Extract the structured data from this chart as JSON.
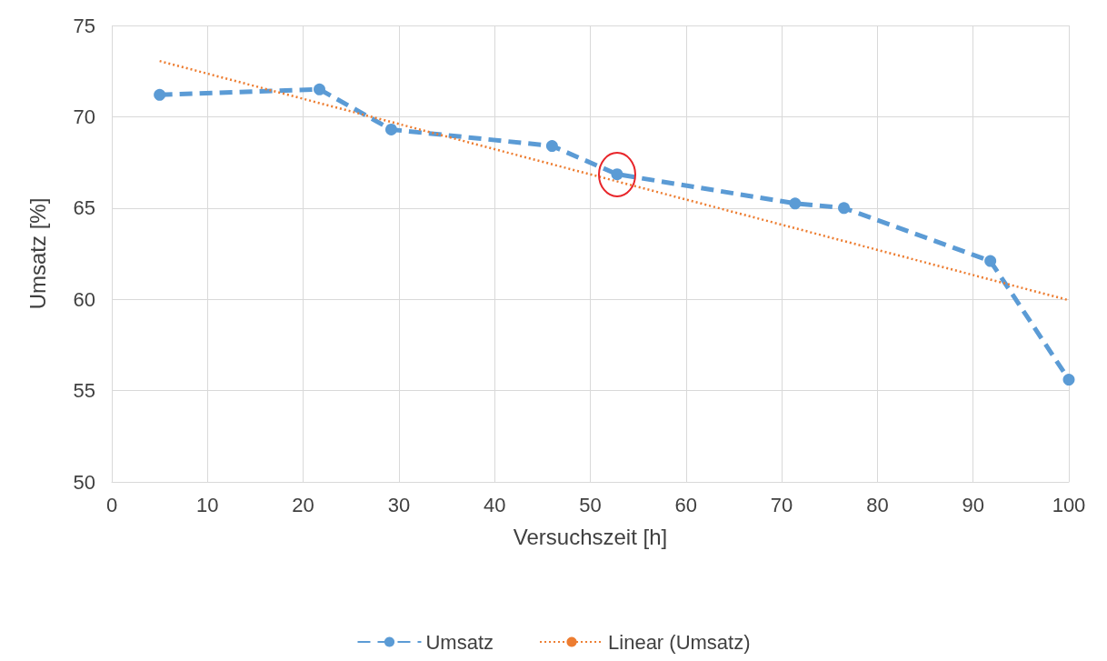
{
  "chart_data": {
    "type": "line",
    "xlabel": "Versuchszeit [h]",
    "ylabel": "Umsatz [%]",
    "xlim": [
      0,
      100
    ],
    "xticks": [
      0,
      10,
      20,
      30,
      40,
      50,
      60,
      70,
      80,
      90,
      100
    ],
    "ylim": [
      50,
      75
    ],
    "yticks": [
      50,
      55,
      60,
      65,
      70,
      75
    ],
    "grid": true,
    "legend": "bottom",
    "series": [
      {
        "name": "Umsatz",
        "color": "#5b9bd5",
        "marker": "circle",
        "line_style": "dashed",
        "x": [
          5,
          21.7,
          29.2,
          46,
          52.8,
          71.4,
          76.5,
          91.8,
          100
        ],
        "values": [
          71.2,
          71.5,
          69.3,
          68.4,
          66.85,
          65.25,
          65,
          62.1,
          55.6
        ]
      },
      {
        "name": "Linear (Umsatz)",
        "color": "#ed7d31",
        "marker": "none",
        "line_style": "dotted",
        "x": [
          5,
          100
        ],
        "values": [
          73.05,
          59.95
        ]
      }
    ]
  }
}
